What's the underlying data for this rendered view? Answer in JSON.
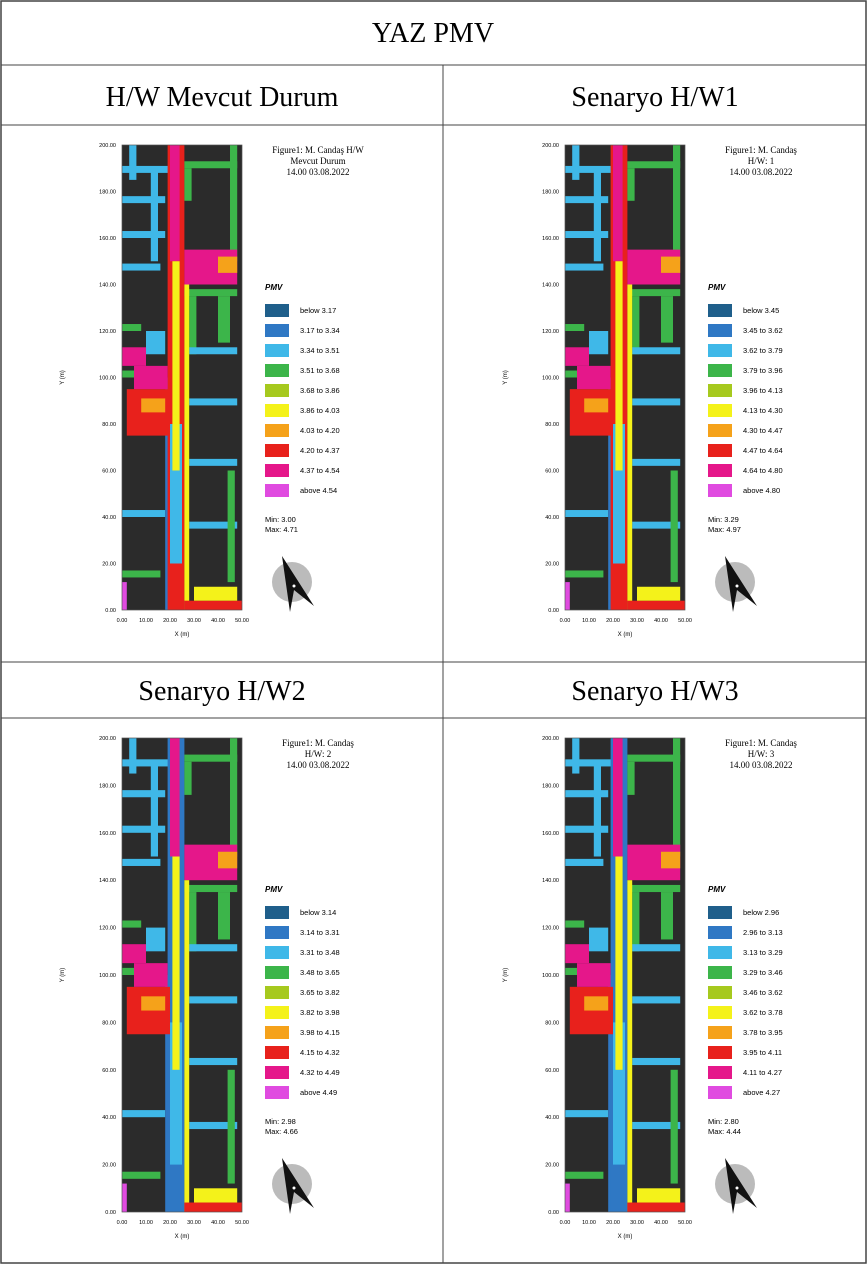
{
  "title": "YAZ PMV",
  "legend_title": "PMV",
  "legend_colors": [
    "#1f5f8b",
    "#2f78c4",
    "#3fb8e8",
    "#3cb54a",
    "#a6c91e",
    "#f4f21a",
    "#f5a21a",
    "#e8211c",
    "#e5178a",
    "#e04be0"
  ],
  "y_ticks": [
    "200.00",
    "180.00",
    "160.00",
    "140.00",
    "120.00",
    "100.00",
    "80.00",
    "60.00",
    "40.00",
    "20.00",
    "0.00"
  ],
  "x_ticks": [
    "0.00",
    "10.00",
    "20.00",
    "30.00",
    "40.00",
    "50.00"
  ],
  "y_label": "Y (m)",
  "x_label": "X (m)",
  "panels": [
    {
      "heading": "H/W Mevcut Durum",
      "caption": [
        "Figure1: M. Candaş H/W",
        "Mevcut Durum",
        "14.00 03.08.2022"
      ],
      "legend": [
        "below 3.17",
        "3.17 to 3.34",
        "3.34 to 3.51",
        "3.51 to 3.68",
        "3.68 to 3.86",
        "3.86 to 4.03",
        "4.03 to 4.20",
        "4.20 to 4.37",
        "4.37 to 4.54",
        "above 4.54"
      ],
      "min": "Min: 3.00",
      "max": "Max: 4.71"
    },
    {
      "heading": "Senaryo H/W1",
      "caption": [
        "Figure1: M. Candaş",
        "H/W: 1",
        "14.00 03.08.2022"
      ],
      "legend": [
        "below 3.45",
        "3.45 to 3.62",
        "3.62 to 3.79",
        "3.79 to 3.96",
        "3.96 to 4.13",
        "4.13 to 4.30",
        "4.30 to 4.47",
        "4.47 to 4.64",
        "4.64 to 4.80",
        "above 4.80"
      ],
      "min": "Min: 3.29",
      "max": "Max: 4.97"
    },
    {
      "heading": "Senaryo H/W2",
      "caption": [
        "Figure1: M. Candaş",
        "H/W: 2",
        "14.00 03.08.2022"
      ],
      "legend": [
        "below 3.14",
        "3.14 to 3.31",
        "3.31 to 3.48",
        "3.48 to 3.65",
        "3.65 to 3.82",
        "3.82 to 3.98",
        "3.98 to 4.15",
        "4.15 to 4.32",
        "4.32 to 4.49",
        "above 4.49"
      ],
      "min": "Min: 2.98",
      "max": "Max: 4.66"
    },
    {
      "heading": "Senaryo H/W3",
      "caption": [
        "Figure1: M. Candaş",
        "H/W: 3",
        "14.00 03.08.2022"
      ],
      "legend": [
        "below 2.96",
        "2.96 to 3.13",
        "3.13 to 3.29",
        "3.29 to 3.46",
        "3.46 to 3.62",
        "3.62 to 3.78",
        "3.78 to 3.95",
        "3.95 to 4.11",
        "4.11 to 4.27",
        "above 4.27"
      ],
      "min": "Min: 2.80",
      "max": "Max: 4.44"
    }
  ]
}
